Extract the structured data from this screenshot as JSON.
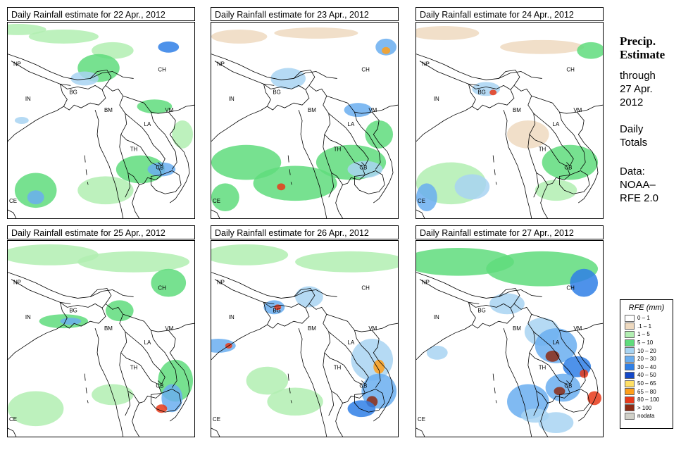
{
  "panels": [
    {
      "title": "Daily Rainfall estimate for  22 Apr., 2012",
      "key": "p22"
    },
    {
      "title": "Daily Rainfall estimate for  23 Apr., 2012",
      "key": "p23"
    },
    {
      "title": "Daily Rainfall estimate for  24 Apr., 2012",
      "key": "p24"
    },
    {
      "title": "Daily Rainfall estimate for  25 Apr., 2012",
      "key": "p25"
    },
    {
      "title": "Daily Rainfall estimate for  26 Apr., 2012",
      "key": "p26"
    },
    {
      "title": "Daily Rainfall estimate for  27 Apr., 2012",
      "key": "p27"
    }
  ],
  "country_labels": {
    "np": "NP",
    "ch": "CH",
    "in": "IN",
    "bg": "BG",
    "bm": "BM",
    "vm": "VM",
    "la": "LA",
    "th": "TH",
    "cb": "CB",
    "ce": "CE"
  },
  "side": {
    "heading1": "Precip.",
    "heading2": "Estimate",
    "through": "through",
    "date1": "27 Apr.",
    "date2": "2012",
    "daily1": "Daily",
    "daily2": "Totals",
    "data1": "Data:",
    "data2": "NOAA–",
    "data3": "RFE 2.0"
  },
  "legend": {
    "title": "RFE (mm)",
    "items": [
      {
        "label": "0 – 1",
        "color": "#ffffff"
      },
      {
        "label": ".1 – 1",
        "color": "#eed9bf"
      },
      {
        "label": "1 – 5",
        "color": "#b2eeb2"
      },
      {
        "label": "5 – 10",
        "color": "#5fdc7c"
      },
      {
        "label": "10 – 20",
        "color": "#a8d4f2"
      },
      {
        "label": "20 – 30",
        "color": "#6aaef0"
      },
      {
        "label": "30 – 40",
        "color": "#2f7fe6"
      },
      {
        "label": "40 – 50",
        "color": "#1448c8"
      },
      {
        "label": "50 – 65",
        "color": "#ffe066"
      },
      {
        "label": "65 – 80",
        "color": "#ff9f1a"
      },
      {
        "label": "80 – 100",
        "color": "#e8391a"
      },
      {
        "label": "> 100",
        "color": "#8c2a14"
      },
      {
        "label": "nodata",
        "color": "#d0d0c8"
      }
    ]
  }
}
